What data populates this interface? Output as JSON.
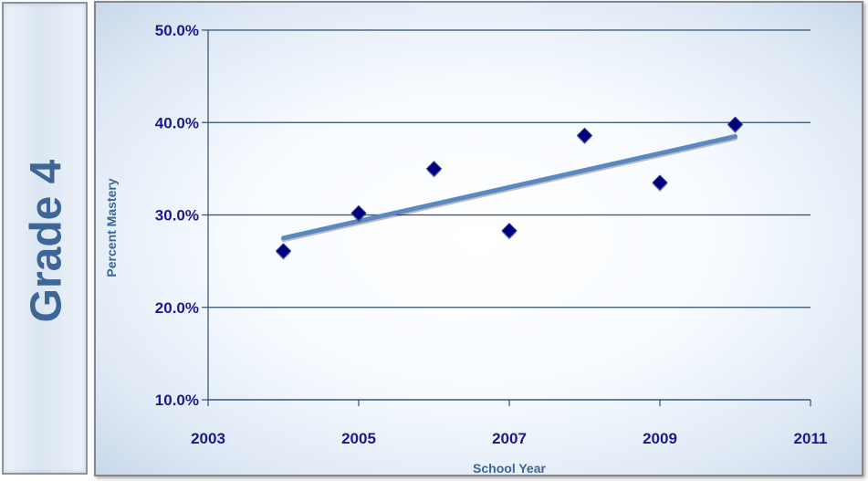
{
  "side_label": "Grade 4",
  "chart_data": {
    "type": "scatter",
    "title": "",
    "xlabel": "School Year",
    "ylabel": "Percent Mastery",
    "xlim": [
      2003,
      2011
    ],
    "ylim": [
      10,
      50
    ],
    "x_ticks": [
      2003,
      2005,
      2007,
      2009,
      2011
    ],
    "y_ticks": [
      10,
      20,
      30,
      40,
      50
    ],
    "y_tick_labels": [
      "10.0%",
      "20.0%",
      "30.0%",
      "40.0%",
      "50.0%"
    ],
    "grid": "horizontal",
    "points": [
      {
        "x": 2004,
        "y": 26.1
      },
      {
        "x": 2005,
        "y": 30.2
      },
      {
        "x": 2006,
        "y": 35.0
      },
      {
        "x": 2007,
        "y": 28.3
      },
      {
        "x": 2008,
        "y": 38.6
      },
      {
        "x": 2009,
        "y": 33.5
      },
      {
        "x": 2010,
        "y": 39.8
      }
    ],
    "trendline": {
      "x": [
        2004,
        2010
      ],
      "y": [
        27.5,
        38.5
      ]
    },
    "colors": {
      "marker": "#00007a",
      "trendline": "#5b88c0",
      "grid": "#2f4f6f",
      "tick_text": "#1a1a8c",
      "axis_title": "#3d6595"
    }
  }
}
